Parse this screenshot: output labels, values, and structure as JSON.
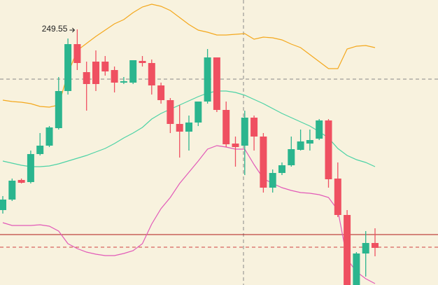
{
  "chart_data": {
    "type": "candlestick",
    "open": [
      236.65,
      237.4,
      238.8,
      238.65,
      240.65,
      241.25,
      242.5,
      245.15,
      248.5,
      246.5,
      247.25,
      247.25,
      246.65,
      245.75,
      245.75,
      247.3,
      247.15,
      245.55,
      244.5,
      242.8,
      242.25,
      242.9,
      244.4,
      247.55,
      243.8,
      241.4,
      241.25,
      243.25,
      241.9,
      238.25,
      239.3,
      239.85,
      240.95,
      241.4,
      241.75,
      243.05,
      238.9,
      236.3,
      231.3,
      233.55,
      234.3
    ],
    "high": [
      237.65,
      238.9,
      238.9,
      240.9,
      242.15,
      242.65,
      246.15,
      248.9,
      249.55,
      247.25,
      248.05,
      247.65,
      246.9,
      246.15,
      247.35,
      247.65,
      247.4,
      245.75,
      244.65,
      244.15,
      243.4,
      244.4,
      248.15,
      247.55,
      244.4,
      241.9,
      243.75,
      243.4,
      242.15,
      239.55,
      240.05,
      241.9,
      242.4,
      242.4,
      243.15,
      243.15,
      240.05,
      236.65,
      233.65,
      235.15,
      235.35
    ],
    "low": [
      236.4,
      237.3,
      238.55,
      238.55,
      240.55,
      241.15,
      242.4,
      244.9,
      246.65,
      243.75,
      245.15,
      246.25,
      245.05,
      245.65,
      245.65,
      246.9,
      244.9,
      244.25,
      242.15,
      240.4,
      240.9,
      242.65,
      244.25,
      243.65,
      241.15,
      239.75,
      239.15,
      240.9,
      237.9,
      237.9,
      239.15,
      239.75,
      240.9,
      240.9,
      241.65,
      238.25,
      236.15,
      231.3,
      231.3,
      231.9,
      233.35
    ],
    "close": [
      237.4,
      238.75,
      238.6,
      240.65,
      241.25,
      242.55,
      245.15,
      248.5,
      247.15,
      245.65,
      245.65,
      246.55,
      245.75,
      245.85,
      247.35,
      247.15,
      245.55,
      244.5,
      242.8,
      242.25,
      242.9,
      244.4,
      247.55,
      243.8,
      241.35,
      241.15,
      243.25,
      241.9,
      238.25,
      239.3,
      239.85,
      241.0,
      241.55,
      241.65,
      243.05,
      238.85,
      236.3,
      231.3,
      233.55,
      234.3,
      233.95
    ],
    "up_color": "#2bb58e",
    "down_color": "#ef5061",
    "bands": [
      {
        "color": "#f4a81d",
        "values": [
          244.5,
          244.4,
          244.35,
          244.25,
          244.05,
          244.0,
          244.15,
          246.4,
          248.05,
          248.55,
          249.05,
          249.5,
          249.95,
          250.25,
          250.75,
          251.15,
          251.35,
          251.2,
          250.9,
          250.4,
          249.9,
          249.5,
          249.35,
          249.15,
          249.15,
          249.2,
          249.25,
          248.85,
          249.0,
          248.95,
          248.8,
          248.5,
          248.25,
          247.75,
          247.25,
          246.75,
          246.75,
          248.15,
          248.35,
          248.4,
          248.25
        ]
      },
      {
        "color": "#4dd3a6",
        "values": [
          240.15,
          240.0,
          239.85,
          239.75,
          239.75,
          239.8,
          239.95,
          240.15,
          240.35,
          240.55,
          240.8,
          241.05,
          241.4,
          241.8,
          242.15,
          242.55,
          243.15,
          243.55,
          243.85,
          244.15,
          244.45,
          244.75,
          245.0,
          245.15,
          245.15,
          245.05,
          244.85,
          244.55,
          244.25,
          243.9,
          243.55,
          243.25,
          242.95,
          242.65,
          242.25,
          241.8,
          241.05,
          240.55,
          240.25,
          240.05,
          239.75
        ]
      },
      {
        "color": "#e25ab8",
        "values": [
          235.75,
          235.55,
          235.55,
          235.55,
          235.6,
          235.5,
          235.15,
          234.25,
          233.9,
          233.65,
          233.5,
          233.4,
          233.4,
          233.55,
          233.75,
          234.25,
          235.65,
          236.75,
          237.55,
          238.55,
          239.35,
          240.15,
          241.0,
          241.25,
          241.15,
          241.0,
          241.0,
          239.9,
          238.9,
          238.55,
          238.25,
          238.05,
          237.9,
          237.85,
          237.75,
          237.55,
          236.65,
          233.15,
          232.25,
          231.75,
          231.4
        ]
      }
    ],
    "price_line": 234.9,
    "price_line_color": "#b01818",
    "ylim": [
      231.3,
      251.65
    ]
  }
}
